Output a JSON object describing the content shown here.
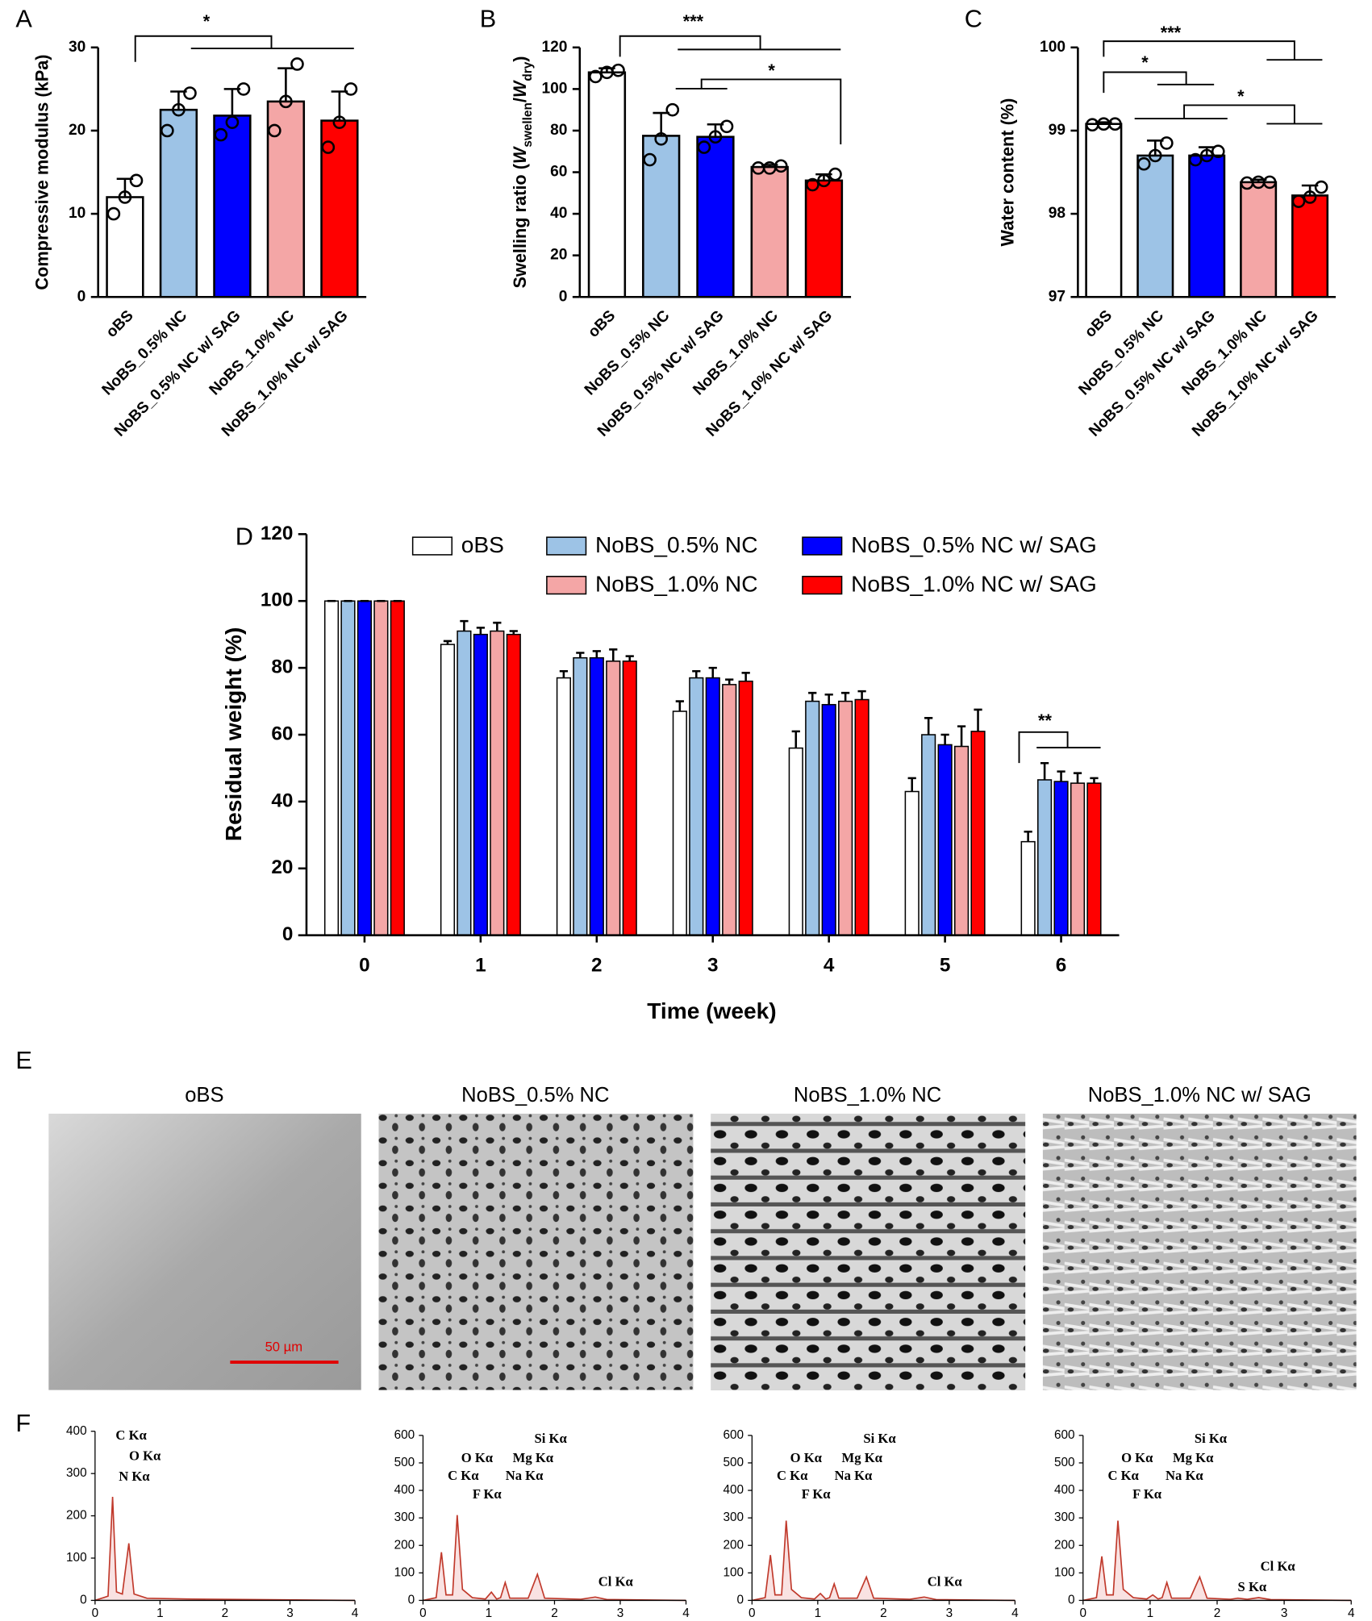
{
  "panel_labels": [
    "A",
    "B",
    "C",
    "D",
    "E",
    "F"
  ],
  "chart_data": [
    {
      "type": "bar",
      "ylabel": "Compressive modulus (kPa)",
      "categories": [
        "oBS",
        "NoBS_0.5% NC",
        "NoBS_0.5% NC w/ SAG",
        "NoBS_1.0% NC",
        "NoBS_1.0% NC w/ SAG"
      ],
      "values": [
        12,
        22.5,
        21.8,
        23.5,
        21.2
      ],
      "errors": [
        2.2,
        2.2,
        3.2,
        4,
        3.5
      ],
      "points": [
        [
          10,
          12,
          14
        ],
        [
          20,
          22.5,
          24.5
        ],
        [
          19.5,
          21,
          25
        ],
        [
          20,
          23.5,
          28
        ],
        [
          18,
          21,
          25
        ]
      ],
      "colors": [
        "#ffffff",
        "#9dc3e6",
        "#0000ff",
        "#f4a6a6",
        "#ff0000"
      ],
      "ylim": [
        0,
        30
      ],
      "yticks": [
        0,
        10,
        20,
        30
      ],
      "annotations": [
        "*"
      ]
    },
    {
      "type": "bar",
      "ylabel_parts": [
        "Swelling ratio (",
        "W",
        "swellen",
        "/",
        "W",
        "dry",
        ")"
      ],
      "categories": [
        "oBS",
        "NoBS_0.5% NC",
        "NoBS_0.5% NC w/ SAG",
        "NoBS_1.0% NC",
        "NoBS_1.0% NC w/ SAG"
      ],
      "values": [
        108,
        77.5,
        77,
        62.5,
        56
      ],
      "errors": [
        2,
        11,
        6,
        1,
        3
      ],
      "points": [
        [
          106,
          108,
          109
        ],
        [
          66,
          76,
          90
        ],
        [
          72,
          77,
          82
        ],
        [
          62,
          62,
          63
        ],
        [
          54,
          56,
          59
        ]
      ],
      "colors": [
        "#ffffff",
        "#9dc3e6",
        "#0000ff",
        "#f4a6a6",
        "#ff0000"
      ],
      "ylim": [
        0,
        120
      ],
      "yticks": [
        0,
        20,
        40,
        60,
        80,
        100,
        120
      ],
      "annotations": [
        "***",
        "*"
      ]
    },
    {
      "type": "bar",
      "ylabel": "Water content (%)",
      "categories": [
        "oBS",
        "NoBS_0.5% NC",
        "NoBS_0.5% NC w/ SAG",
        "NoBS_1.0% NC",
        "NoBS_1.0% NC w/ SAG"
      ],
      "values": [
        99.08,
        98.7,
        98.7,
        98.38,
        98.22
      ],
      "errors": [
        0.02,
        0.18,
        0.1,
        0.03,
        0.12
      ],
      "points": [
        [
          99.07,
          99.08,
          99.08
        ],
        [
          98.6,
          98.7,
          98.85
        ],
        [
          98.65,
          98.7,
          98.75
        ],
        [
          98.37,
          98.38,
          98.38
        ],
        [
          98.15,
          98.2,
          98.32
        ]
      ],
      "colors": [
        "#ffffff",
        "#9dc3e6",
        "#0000ff",
        "#f4a6a6",
        "#ff0000"
      ],
      "ylim": [
        97,
        100
      ],
      "yticks": [
        97,
        98,
        99,
        100
      ],
      "annotations": [
        "***",
        "*",
        "*"
      ]
    },
    {
      "type": "grouped_bar",
      "ylabel": "Residual weight (%)",
      "xlabel": "Time (week)",
      "categories": [
        "0",
        "1",
        "2",
        "3",
        "4",
        "5",
        "6"
      ],
      "ylim": [
        0,
        120
      ],
      "yticks": [
        0,
        20,
        40,
        60,
        80,
        100,
        120
      ],
      "annotations": [
        "**"
      ],
      "series": [
        {
          "name": "oBS",
          "color": "#ffffff",
          "values": [
            100,
            87,
            77,
            67,
            56,
            43,
            28
          ],
          "errors": [
            0,
            1,
            2,
            3,
            5,
            4,
            3
          ]
        },
        {
          "name": "NoBS_0.5% NC",
          "color": "#9dc3e6",
          "values": [
            100,
            91,
            83,
            77,
            70,
            60,
            46.5
          ],
          "errors": [
            0,
            3,
            1.5,
            2,
            2.5,
            5,
            5
          ]
        },
        {
          "name": "NoBS_0.5% NC w/ SAG",
          "color": "#0000ff",
          "values": [
            100,
            90,
            83,
            77,
            69,
            57,
            46
          ],
          "errors": [
            0,
            2,
            2,
            3,
            3,
            3,
            3
          ]
        },
        {
          "name": "NoBS_1.0% NC",
          "color": "#f4a6a6",
          "values": [
            100,
            91,
            82,
            75,
            70,
            56.5,
            45.5
          ],
          "errors": [
            0,
            2.5,
            3.5,
            1.5,
            2.5,
            6,
            3
          ]
        },
        {
          "name": "NoBS_1.0% NC w/ SAG",
          "color": "#ff0000",
          "values": [
            100,
            90,
            82,
            76,
            70.5,
            61,
            45.5
          ],
          "errors": [
            0,
            1,
            1.5,
            2.5,
            2.5,
            6.5,
            1.5
          ]
        }
      ]
    },
    {
      "type": "line",
      "x": [
        0,
        0.2,
        0.27,
        0.33,
        0.42,
        0.52,
        0.6,
        0.8,
        1.5,
        4
      ],
      "y": [
        0,
        10,
        245,
        20,
        15,
        135,
        15,
        5,
        3,
        0
      ],
      "color": "#c0392b",
      "xlim": [
        0,
        4
      ],
      "xticks": [
        0,
        1,
        2,
        3,
        4
      ],
      "ylim": [
        0,
        400
      ],
      "yticks": [
        0,
        100,
        200,
        300,
        400
      ],
      "annotations": [
        "C Kα",
        "O Kα",
        "N Kα"
      ]
    },
    {
      "type": "line",
      "x": [
        0,
        0.2,
        0.28,
        0.35,
        0.45,
        0.52,
        0.6,
        0.75,
        0.95,
        1.04,
        1.12,
        1.18,
        1.25,
        1.32,
        1.6,
        1.74,
        1.85,
        2.4,
        2.62,
        2.8,
        4
      ],
      "y": [
        0,
        10,
        175,
        20,
        20,
        310,
        40,
        10,
        5,
        30,
        5,
        10,
        65,
        8,
        8,
        95,
        8,
        4,
        12,
        3,
        0
      ],
      "color": "#c0392b",
      "xlim": [
        0,
        4
      ],
      "xticks": [
        0,
        1,
        2,
        3,
        4
      ],
      "ylim": [
        0,
        600
      ],
      "yticks": [
        0,
        100,
        200,
        300,
        400,
        500,
        600
      ],
      "annotations": [
        "Si Kα",
        "O Kα",
        "Mg Kα",
        "C Kα",
        "Na Kα",
        "F Kα",
        "Cl Kα"
      ]
    },
    {
      "type": "line",
      "x": [
        0,
        0.2,
        0.28,
        0.35,
        0.45,
        0.52,
        0.6,
        0.75,
        0.95,
        1.04,
        1.12,
        1.18,
        1.25,
        1.32,
        1.6,
        1.74,
        1.85,
        2.4,
        2.62,
        2.8,
        4
      ],
      "y": [
        0,
        10,
        165,
        20,
        20,
        290,
        40,
        10,
        5,
        25,
        5,
        10,
        60,
        8,
        8,
        85,
        8,
        4,
        12,
        3,
        0
      ],
      "color": "#c0392b",
      "xlim": [
        0,
        4
      ],
      "xticks": [
        0,
        1,
        2,
        3,
        4
      ],
      "ylim": [
        0,
        600
      ],
      "yticks": [
        0,
        100,
        200,
        300,
        400,
        500,
        600
      ],
      "annotations": [
        "Si Kα",
        "O Kα",
        "Mg Kα",
        "C Kα",
        "Na Kα",
        "F Kα",
        "Cl Kα"
      ]
    },
    {
      "type": "line",
      "x": [
        0,
        0.2,
        0.28,
        0.35,
        0.45,
        0.52,
        0.6,
        0.75,
        0.95,
        1.04,
        1.12,
        1.18,
        1.25,
        1.32,
        1.6,
        1.74,
        1.85,
        2.2,
        2.31,
        2.45,
        2.62,
        2.8,
        4
      ],
      "y": [
        0,
        10,
        160,
        20,
        20,
        290,
        40,
        10,
        5,
        20,
        5,
        10,
        65,
        8,
        8,
        85,
        8,
        4,
        8,
        4,
        10,
        3,
        0
      ],
      "color": "#c0392b",
      "xlim": [
        0,
        4
      ],
      "xticks": [
        0,
        1,
        2,
        3,
        4
      ],
      "ylim": [
        0,
        600
      ],
      "yticks": [
        0,
        100,
        200,
        300,
        400,
        500,
        600
      ],
      "annotations": [
        "Si Kα",
        "O Kα",
        "Mg Kα",
        "C Kα",
        "Na Kα",
        "F Kα",
        "Cl Kα",
        "S Kα"
      ]
    }
  ],
  "panel_E": {
    "titles": [
      "oBS",
      "NoBS_0.5% NC",
      "NoBS_1.0% NC",
      "NoBS_1.0% NC w/ SAG"
    ],
    "scale_bar": "50 µm"
  }
}
